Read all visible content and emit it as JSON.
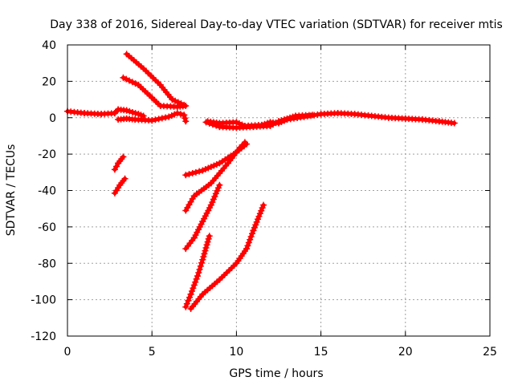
{
  "chart_data": {
    "type": "scatter",
    "title": "Day 338 of 2016, Sidereal Day-to-day VTEC variation (SDTVAR) for receiver mtis",
    "xlabel": "GPS time / hours",
    "ylabel": "SDTVAR / TECUs",
    "xlim": [
      0,
      25
    ],
    "ylim": [
      -120,
      40
    ],
    "xticks": [
      "0",
      "5",
      "10",
      "15",
      "20",
      "25"
    ],
    "yticks": [
      "40",
      "20",
      "0",
      "-20",
      "-40",
      "-60",
      "-80",
      "-100",
      "-120"
    ],
    "grid": true,
    "marker": "plus",
    "series_color": "#ff0000",
    "tracks": [
      {
        "points": [
          [
            0.0,
            3.5
          ],
          [
            1.0,
            2.5
          ],
          [
            2.0,
            2.0
          ],
          [
            2.8,
            2.5
          ],
          [
            3.0,
            4.5
          ],
          [
            3.5,
            4.0
          ],
          [
            4.2,
            2.0
          ],
          [
            4.5,
            1.0
          ]
        ]
      },
      {
        "points": [
          [
            3.0,
            -1.0
          ],
          [
            3.5,
            -0.5
          ],
          [
            4.0,
            -1.0
          ],
          [
            5.0,
            -1.5
          ],
          [
            6.0,
            0.5
          ],
          [
            6.5,
            2.5
          ],
          [
            6.9,
            1.5
          ],
          [
            7.0,
            -2.0
          ]
        ]
      },
      {
        "points": [
          [
            3.5,
            35.0
          ],
          [
            4.5,
            27.0
          ],
          [
            5.5,
            18.0
          ],
          [
            6.2,
            10.0
          ],
          [
            6.9,
            7.0
          ]
        ]
      },
      {
        "points": [
          [
            3.3,
            22.0
          ],
          [
            4.2,
            18.0
          ],
          [
            5.0,
            11.0
          ],
          [
            5.5,
            6.5
          ],
          [
            6.5,
            6.0
          ],
          [
            7.0,
            6.5
          ]
        ]
      },
      {
        "points": [
          [
            2.8,
            -28.5
          ],
          [
            3.0,
            -25.0
          ],
          [
            3.3,
            -21.5
          ]
        ]
      },
      {
        "points": [
          [
            2.8,
            -41.5
          ],
          [
            3.1,
            -37.0
          ],
          [
            3.4,
            -33.5
          ]
        ]
      },
      {
        "points": [
          [
            7.0,
            -31.5
          ],
          [
            8.0,
            -29.0
          ],
          [
            9.0,
            -25.0
          ],
          [
            10.0,
            -19.0
          ],
          [
            10.6,
            -14.5
          ]
        ]
      },
      {
        "points": [
          [
            7.0,
            -51.0
          ],
          [
            7.5,
            -43.0
          ],
          [
            8.5,
            -36.0
          ],
          [
            9.5,
            -25.0
          ],
          [
            10.2,
            -16.5
          ],
          [
            10.5,
            -13.5
          ]
        ]
      },
      {
        "points": [
          [
            7.0,
            -72.0
          ],
          [
            7.5,
            -66.0
          ],
          [
            8.0,
            -57.0
          ],
          [
            8.5,
            -48.0
          ],
          [
            9.0,
            -37.0
          ]
        ]
      },
      {
        "points": [
          [
            7.0,
            -104.0
          ],
          [
            7.3,
            -97.0
          ],
          [
            7.7,
            -87.0
          ],
          [
            8.0,
            -78.0
          ],
          [
            8.4,
            -65.0
          ]
        ]
      },
      {
        "points": [
          [
            7.3,
            -105.0
          ],
          [
            8.0,
            -97.0
          ],
          [
            9.0,
            -89.0
          ],
          [
            10.0,
            -80.0
          ],
          [
            10.6,
            -72.0
          ],
          [
            11.0,
            -62.0
          ],
          [
            11.6,
            -48.0
          ]
        ]
      },
      {
        "points": [
          [
            8.3,
            -2.0
          ],
          [
            9.0,
            -3.0
          ],
          [
            10.0,
            -2.5
          ],
          [
            10.5,
            -4.5
          ],
          [
            11.5,
            -4.0
          ],
          [
            12.0,
            -2.5
          ],
          [
            12.5,
            -3.0
          ],
          [
            13.0,
            -1.0
          ],
          [
            14.0,
            0.5
          ],
          [
            15.0,
            2.0
          ],
          [
            16.0,
            2.5
          ],
          [
            17.0,
            2.0
          ],
          [
            18.0,
            1.0
          ],
          [
            19.0,
            0.0
          ],
          [
            20.0,
            -0.5
          ],
          [
            21.0,
            -1.0
          ],
          [
            22.0,
            -2.0
          ],
          [
            22.9,
            -3.0
          ]
        ]
      },
      {
        "points": [
          [
            8.2,
            -2.5
          ],
          [
            9.0,
            -5.0
          ],
          [
            10.0,
            -5.5
          ],
          [
            11.0,
            -5.0
          ],
          [
            12.0,
            -4.5
          ],
          [
            12.5,
            -2.0
          ],
          [
            13.5,
            1.0
          ],
          [
            14.5,
            1.5
          ]
        ]
      }
    ]
  }
}
